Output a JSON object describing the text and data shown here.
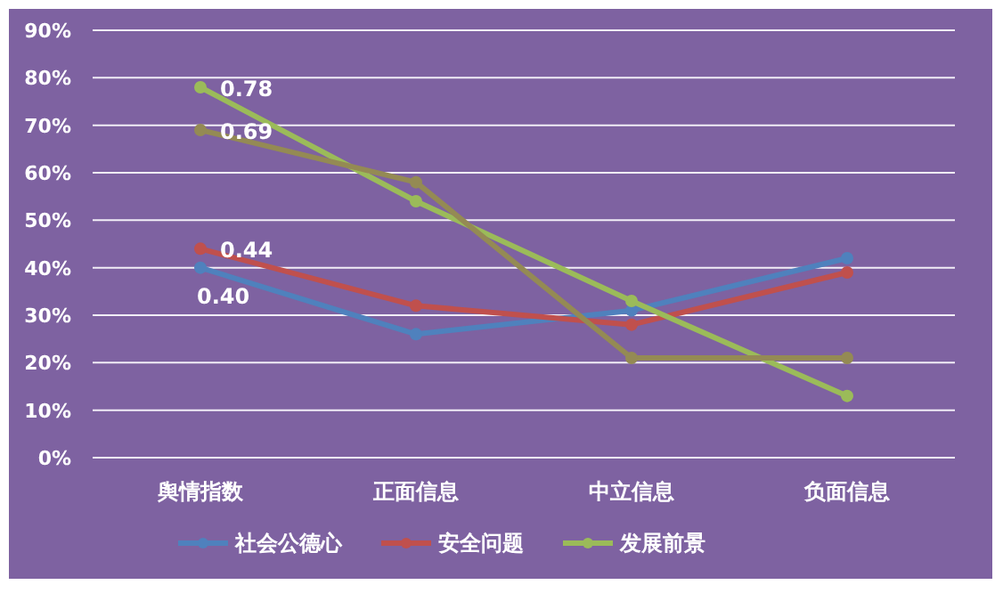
{
  "chart_data": {
    "type": "line",
    "categories": [
      "舆情指数",
      "正面信息",
      "中立信息",
      "负面信息"
    ],
    "series": [
      {
        "name": "社会公德心",
        "color": "#4f81bd",
        "values": [
          0.4,
          0.26,
          0.31,
          0.42
        ],
        "value_labels": [
          "0.40",
          null,
          null,
          null
        ]
      },
      {
        "name": "安全问题",
        "color": "#c0504d",
        "values": [
          0.44,
          0.32,
          0.28,
          0.39
        ],
        "value_labels": [
          "0.44",
          null,
          null,
          null
        ]
      },
      {
        "name": "发展前景",
        "color": "#9bbb59",
        "values": [
          0.78,
          0.54,
          0.33,
          0.13
        ],
        "value_labels": [
          "0.78",
          null,
          null,
          null
        ]
      },
      {
        "color": "#948a54",
        "values": [
          0.69,
          0.58,
          0.21,
          0.21
        ],
        "value_labels": [
          "0.69",
          null,
          null,
          null
        ]
      }
    ],
    "ylim": [
      0,
      0.9
    ],
    "yticks": [
      {
        "value": 0,
        "label": "0%"
      },
      {
        "value": 0.1,
        "label": "10%"
      },
      {
        "value": 0.2,
        "label": "20%"
      },
      {
        "value": 0.3,
        "label": "30%"
      },
      {
        "value": 0.4,
        "label": "40%"
      },
      {
        "value": 0.5,
        "label": "50%"
      },
      {
        "value": 0.6,
        "label": "60%"
      },
      {
        "value": 0.7,
        "label": "70%"
      },
      {
        "value": 0.8,
        "label": "80%"
      },
      {
        "value": 0.9,
        "label": "90%"
      }
    ],
    "grid": "y",
    "legend": "bottom",
    "marker": "circle"
  }
}
